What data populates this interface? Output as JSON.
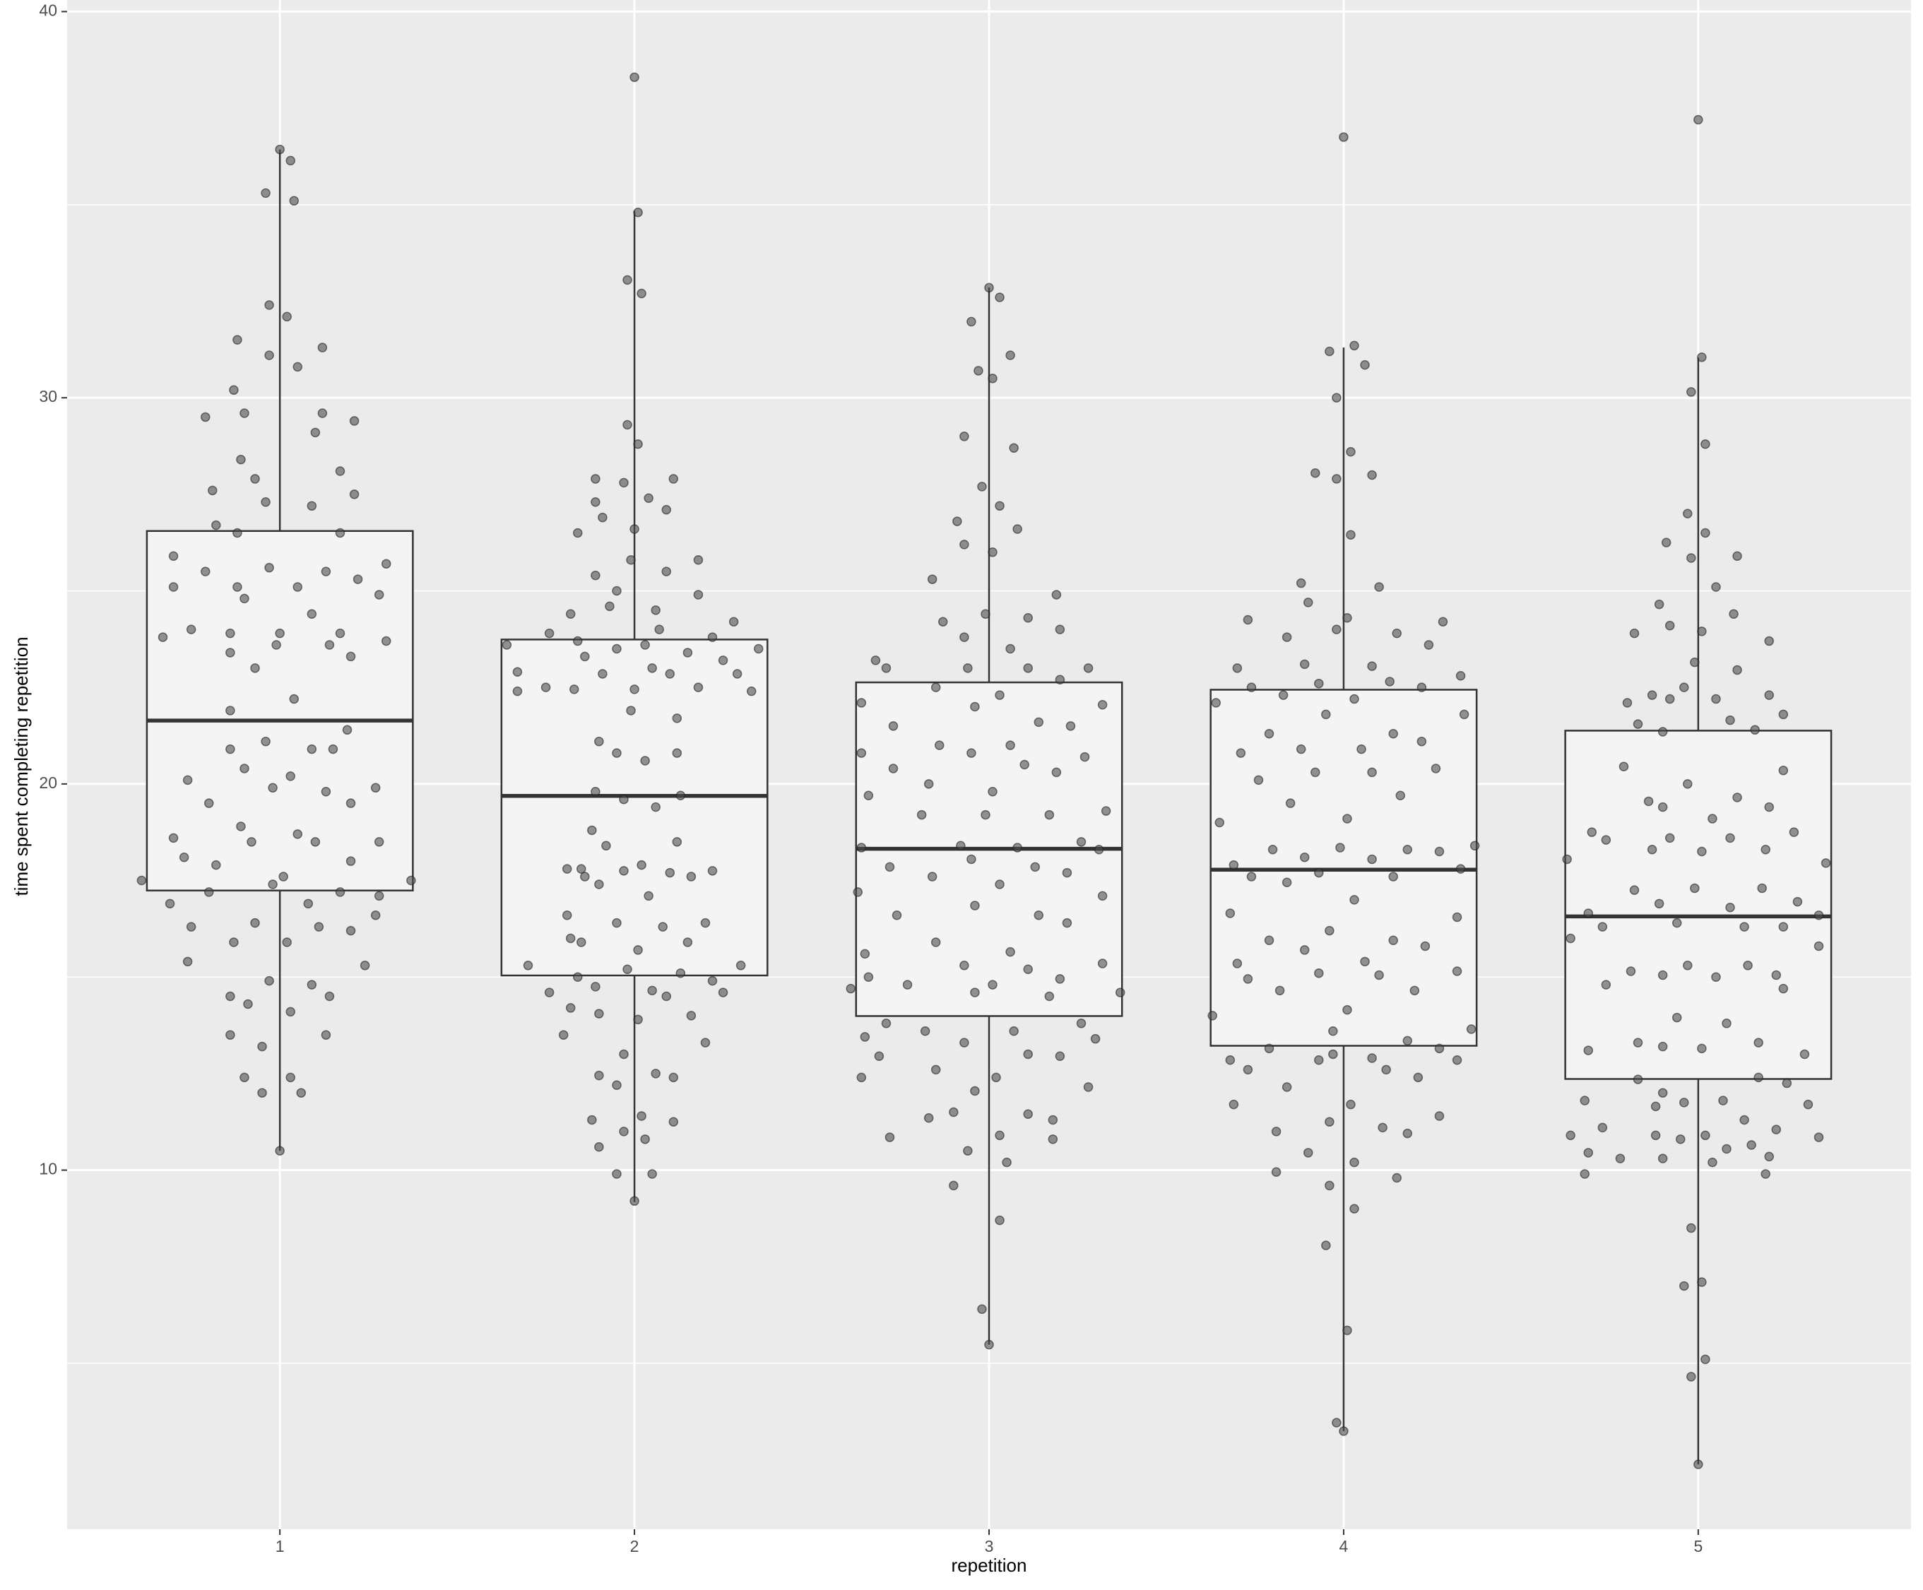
{
  "chart_data": {
    "type": "box",
    "x_label": "repetition",
    "y_label": "time spent completing repetition",
    "xlim": [
      0.4,
      5.6
    ],
    "xticks": [
      1,
      2,
      3,
      4,
      5
    ],
    "ylim": [
      0.7,
      40.3
    ],
    "yticks": [
      10,
      20,
      30,
      40
    ],
    "minor_yticks": [
      5,
      15,
      25,
      35
    ],
    "grid": true,
    "panel_color": "#ebebeb",
    "box_fill": "#f4f4f4",
    "line_color": "#333333",
    "point_color": "#4d4d4d",
    "boxes": [
      {
        "x": 1,
        "whisker_low": 10.5,
        "q1": 17.24,
        "median": 21.64,
        "q3": 26.55,
        "whisker_high": 36.43
      },
      {
        "x": 2,
        "whisker_low": 9.17,
        "q1": 15.04,
        "median": 19.69,
        "q3": 23.74,
        "whisker_high": 34.84
      },
      {
        "x": 3,
        "whisker_low": 5.48,
        "q1": 13.99,
        "median": 18.32,
        "q3": 22.63,
        "whisker_high": 32.86
      },
      {
        "x": 4,
        "whisker_low": 3.24,
        "q1": 13.22,
        "median": 17.78,
        "q3": 22.44,
        "whisker_high": 31.3
      },
      {
        "x": 5,
        "whisker_low": 2.38,
        "q1": 12.36,
        "median": 16.57,
        "q3": 21.38,
        "whisker_high": 31.04
      }
    ],
    "points": {
      "x": [
        1.0,
        1.03,
        0.96,
        1.04,
        0.97,
        1.02,
        0.88,
        1.12,
        0.97,
        1.05,
        0.87,
        0.79,
        0.9,
        1.12,
        1.21,
        1.1,
        0.89,
        1.17,
        0.93,
        0.81,
        1.21,
        0.96,
        1.09,
        0.82,
        0.88,
        1.17,
        0.7,
        0.79,
        0.97,
        1.13,
        1.3,
        1.22,
        0.7,
        0.88,
        1.05,
        0.9,
        1.28,
        1.09,
        0.75,
        0.67,
        0.86,
        1.17,
        1.0,
        0.99,
        1.14,
        1.3,
        0.86,
        1.2,
        0.93,
        1.04,
        0.86,
        1.19,
        0.96,
        0.86,
        1.09,
        1.15,
        0.9,
        1.03,
        0.74,
        0.98,
        1.13,
        1.27,
        0.8,
        1.2,
        0.7,
        0.89,
        1.05,
        0.92,
        1.1,
        1.28,
        0.73,
        0.82,
        1.2,
        0.61,
        1.01,
        0.98,
        1.37,
        0.8,
        1.17,
        1.28,
        0.69,
        1.08,
        1.27,
        0.93,
        1.11,
        0.75,
        1.2,
        0.87,
        1.02,
        0.74,
        1.24,
        0.97,
        1.09,
        0.86,
        1.14,
        0.91,
        1.03,
        0.86,
        1.13,
        0.95,
        0.9,
        1.03,
        0.95,
        1.06,
        1.0,
        2.0,
        2.01,
        1.98,
        2.02,
        1.98,
        2.01,
        1.89,
        1.97,
        2.11,
        2.04,
        1.89,
        2.09,
        1.91,
        2.0,
        1.84,
        2.18,
        1.99,
        2.09,
        1.89,
        2.18,
        1.95,
        1.93,
        2.06,
        1.82,
        2.28,
        2.07,
        1.76,
        2.22,
        1.84,
        2.03,
        1.64,
        2.35,
        1.95,
        1.86,
        2.15,
        2.25,
        1.67,
        1.91,
        2.05,
        2.1,
        2.29,
        1.67,
        1.75,
        1.83,
        2.18,
        2.33,
        2.0,
        1.99,
        2.12,
        1.9,
        1.95,
        2.12,
        2.03,
        1.89,
        1.97,
        2.06,
        2.13,
        1.88,
        1.92,
        2.12,
        1.81,
        1.85,
        1.97,
        2.02,
        2.1,
        2.22,
        2.16,
        1.86,
        1.9,
        2.04,
        1.81,
        2.08,
        1.95,
        2.2,
        1.82,
        1.85,
        2.15,
        2.01,
        1.7,
        1.98,
        2.13,
        2.3,
        1.84,
        2.22,
        1.76,
        1.89,
        2.05,
        2.09,
        2.25,
        1.82,
        1.9,
        2.01,
        2.16,
        1.8,
        2.2,
        1.97,
        1.9,
        2.06,
        2.11,
        1.95,
        1.88,
        2.02,
        2.11,
        1.97,
        2.03,
        1.9,
        1.95,
        2.05,
        2.0,
        3.0,
        3.03,
        2.95,
        3.06,
        2.97,
        3.01,
        3.07,
        2.93,
        2.98,
        3.03,
        2.91,
        3.08,
        3.01,
        2.93,
        2.84,
        3.19,
        2.99,
        3.11,
        2.87,
        3.2,
        2.93,
        3.06,
        2.68,
        3.28,
        2.71,
        2.94,
        3.11,
        2.85,
        3.2,
        3.03,
        2.64,
        2.96,
        3.32,
        3.14,
        2.73,
        3.23,
        2.86,
        3.06,
        2.64,
        2.95,
        3.1,
        3.19,
        2.73,
        3.27,
        2.83,
        3.01,
        2.66,
        3.17,
        2.99,
        2.81,
        3.33,
        3.26,
        2.92,
        3.08,
        2.64,
        3.31,
        2.95,
        2.72,
        3.13,
        3.22,
        2.84,
        3.03,
        2.63,
        3.32,
        2.96,
        2.74,
        3.14,
        3.22,
        2.85,
        2.65,
        3.06,
        2.93,
        3.11,
        3.32,
        2.66,
        3.2,
        2.77,
        3.01,
        2.61,
        2.96,
        3.37,
        3.17,
        2.71,
        2.82,
        3.26,
        3.07,
        2.65,
        2.93,
        3.3,
        2.69,
        3.11,
        3.2,
        2.85,
        3.02,
        2.64,
        3.28,
        2.96,
        2.9,
        3.11,
        2.83,
        3.18,
        3.03,
        2.72,
        3.18,
        2.94,
        3.05,
        2.9,
        3.03,
        2.98,
        3.0,
        4.0,
        4.03,
        3.96,
        4.06,
        3.98,
        4.02,
        3.92,
        3.98,
        4.08,
        4.02,
        4.1,
        3.88,
        3.9,
        3.73,
        4.01,
        4.28,
        3.84,
        4.15,
        3.98,
        4.24,
        3.7,
        4.08,
        3.89,
        4.33,
        4.13,
        3.93,
        3.74,
        4.22,
        3.83,
        4.03,
        3.64,
        3.95,
        4.34,
        3.79,
        4.14,
        4.22,
        3.88,
        3.71,
        4.05,
        4.26,
        3.92,
        4.08,
        3.76,
        4.16,
        3.85,
        4.01,
        3.65,
        4.37,
        3.8,
        3.99,
        4.18,
        4.27,
        3.89,
        4.08,
        3.69,
        3.93,
        4.14,
        4.33,
        3.74,
        3.84,
        4.03,
        3.68,
        4.32,
        3.96,
        3.79,
        4.14,
        4.23,
        3.89,
        4.06,
        3.7,
        4.32,
        3.93,
        4.1,
        3.73,
        3.82,
        4.2,
        4.01,
        3.63,
        4.36,
        3.97,
        4.18,
        3.79,
        4.27,
        3.97,
        4.08,
        3.93,
        3.68,
        4.32,
        3.73,
        4.12,
        4.21,
        3.84,
        3.69,
        4.02,
        4.27,
        3.96,
        3.81,
        4.11,
        4.18,
        3.9,
        4.03,
        3.81,
        4.15,
        3.96,
        4.03,
        3.95,
        4.01,
        3.98,
        4.0,
        5.0,
        5.01,
        4.98,
        5.02,
        4.97,
        5.02,
        5.11,
        4.98,
        4.91,
        5.05,
        4.89,
        5.1,
        4.92,
        4.82,
        5.01,
        5.2,
        4.99,
        5.11,
        4.8,
        5.05,
        4.87,
        4.92,
        5.2,
        4.96,
        5.09,
        5.24,
        4.9,
        5.16,
        4.83,
        5.24,
        4.79,
        4.97,
        5.11,
        4.86,
        5.2,
        4.9,
        5.04,
        4.63,
        4.7,
        4.74,
        4.92,
        5.09,
        4.87,
        5.01,
        5.19,
        5.27,
        5.36,
        4.82,
        4.99,
        5.18,
        4.69,
        4.89,
        5.09,
        5.34,
        5.28,
        4.64,
        4.73,
        4.94,
        5.13,
        5.24,
        5.34,
        4.81,
        4.97,
        5.14,
        4.9,
        5.05,
        5.22,
        4.74,
        5.24,
        4.94,
        5.08,
        4.83,
        4.9,
        5.01,
        5.17,
        4.69,
        5.3,
        4.83,
        5.17,
        5.25,
        4.9,
        4.68,
        4.96,
        5.07,
        5.31,
        4.88,
        4.73,
        5.13,
        5.22,
        4.64,
        4.88,
        5.02,
        4.95,
        5.34,
        5.15,
        4.69,
        4.78,
        4.9,
        5.04,
        5.2,
        5.08,
        4.68,
        5.19,
        4.98,
        4.96,
        5.01,
        5.02,
        4.98,
        5.0
      ],
      "y": [
        36.43,
        36.14,
        35.3,
        35.1,
        32.4,
        32.1,
        31.5,
        31.3,
        31.1,
        30.8,
        30.2,
        29.5,
        29.6,
        29.6,
        29.4,
        29.1,
        28.4,
        28.1,
        27.9,
        27.6,
        27.5,
        27.3,
        27.2,
        26.7,
        26.5,
        26.5,
        25.9,
        25.5,
        25.6,
        25.5,
        25.7,
        25.3,
        25.1,
        25.1,
        25.1,
        24.8,
        24.9,
        24.4,
        24.0,
        23.8,
        23.9,
        23.9,
        23.9,
        23.6,
        23.6,
        23.7,
        23.4,
        23.3,
        23.0,
        22.2,
        21.9,
        21.4,
        21.1,
        20.9,
        20.9,
        20.9,
        20.4,
        20.2,
        20.1,
        19.9,
        19.8,
        19.9,
        19.5,
        19.5,
        18.6,
        18.9,
        18.7,
        18.5,
        18.5,
        18.5,
        18.1,
        17.9,
        18.0,
        17.5,
        17.6,
        17.4,
        17.5,
        17.2,
        17.2,
        17.1,
        16.9,
        16.9,
        16.6,
        16.4,
        16.3,
        16.3,
        16.2,
        15.9,
        15.9,
        15.4,
        15.3,
        14.9,
        14.8,
        14.5,
        14.5,
        14.3,
        14.1,
        13.5,
        13.5,
        13.2,
        12.4,
        12.4,
        12.0,
        12.0,
        10.5,
        38.3,
        34.8,
        33.05,
        32.7,
        29.3,
        28.8,
        27.9,
        27.8,
        27.9,
        27.4,
        27.3,
        27.1,
        26.9,
        26.6,
        26.5,
        25.8,
        25.8,
        25.5,
        25.4,
        24.9,
        25.0,
        24.6,
        24.5,
        24.4,
        24.2,
        24.0,
        23.9,
        23.8,
        23.7,
        23.6,
        23.6,
        23.5,
        23.5,
        23.3,
        23.4,
        23.2,
        22.9,
        22.85,
        23.0,
        22.85,
        22.85,
        22.4,
        22.5,
        22.45,
        22.5,
        22.4,
        22.45,
        21.9,
        21.7,
        21.1,
        20.8,
        20.8,
        20.6,
        19.8,
        19.6,
        19.4,
        19.7,
        18.8,
        18.4,
        18.5,
        17.8,
        17.8,
        17.75,
        17.9,
        17.7,
        17.75,
        17.6,
        17.6,
        17.4,
        17.1,
        16.6,
        16.3,
        16.4,
        16.4,
        16.0,
        15.9,
        15.9,
        15.7,
        15.3,
        15.2,
        15.1,
        15.3,
        15.0,
        14.9,
        14.6,
        14.75,
        14.65,
        14.5,
        14.6,
        14.2,
        14.05,
        13.9,
        14.0,
        13.5,
        13.3,
        13.0,
        12.45,
        12.5,
        12.4,
        12.2,
        11.3,
        11.4,
        11.25,
        11.0,
        10.8,
        10.6,
        9.9,
        9.9,
        9.2,
        32.85,
        32.6,
        31.97,
        31.1,
        30.7,
        30.5,
        28.7,
        29.0,
        27.7,
        27.2,
        26.8,
        26.6,
        26.0,
        26.2,
        25.3,
        24.9,
        24.4,
        24.3,
        24.2,
        24.0,
        23.8,
        23.5,
        23.2,
        23.0,
        23.0,
        23.0,
        23.0,
        22.5,
        22.7,
        22.3,
        22.1,
        22.0,
        22.05,
        21.6,
        21.5,
        21.5,
        21.0,
        21.0,
        20.8,
        20.8,
        20.5,
        20.3,
        20.4,
        20.7,
        20.0,
        19.8,
        19.7,
        19.2,
        19.2,
        19.2,
        19.3,
        18.5,
        18.4,
        18.35,
        18.35,
        18.3,
        18.05,
        17.85,
        17.85,
        17.7,
        17.6,
        17.4,
        17.2,
        17.1,
        16.85,
        16.6,
        16.6,
        16.4,
        15.9,
        15.6,
        15.65,
        15.3,
        15.2,
        15.35,
        15.0,
        14.95,
        14.8,
        14.8,
        14.7,
        14.6,
        14.6,
        14.5,
        13.8,
        13.6,
        13.8,
        13.6,
        13.45,
        13.3,
        13.4,
        12.95,
        13.0,
        12.95,
        12.6,
        12.4,
        12.4,
        12.15,
        12.05,
        11.5,
        11.45,
        11.35,
        11.3,
        10.9,
        10.85,
        10.8,
        10.5,
        10.2,
        9.6,
        8.7,
        6.4,
        5.48,
        36.75,
        31.35,
        31.2,
        30.85,
        30.0,
        28.6,
        28.05,
        27.9,
        28.0,
        26.45,
        25.1,
        25.2,
        24.7,
        24.25,
        24.3,
        24.2,
        23.8,
        23.9,
        24.0,
        23.6,
        23.0,
        23.05,
        23.1,
        22.8,
        22.65,
        22.6,
        22.5,
        22.5,
        22.3,
        22.2,
        22.1,
        21.8,
        21.8,
        21.3,
        21.3,
        21.1,
        20.9,
        20.8,
        20.9,
        20.4,
        20.3,
        20.3,
        20.1,
        19.7,
        19.5,
        19.1,
        19.0,
        18.4,
        18.3,
        18.35,
        18.3,
        18.25,
        18.1,
        18.05,
        17.9,
        17.7,
        17.6,
        17.8,
        17.6,
        17.45,
        17.0,
        16.65,
        16.55,
        16.2,
        15.95,
        15.95,
        15.8,
        15.7,
        15.4,
        15.35,
        15.15,
        15.1,
        15.05,
        14.95,
        14.65,
        14.65,
        14.15,
        14.0,
        13.65,
        13.6,
        13.35,
        13.15,
        13.15,
        13.0,
        12.9,
        12.85,
        12.85,
        12.85,
        12.6,
        12.6,
        12.4,
        12.15,
        11.7,
        11.7,
        11.4,
        11.25,
        11.0,
        11.1,
        10.95,
        10.45,
        10.2,
        9.95,
        9.8,
        9.6,
        9.0,
        8.05,
        5.85,
        3.46,
        3.24,
        37.2,
        31.05,
        30.15,
        28.8,
        27.0,
        26.5,
        25.9,
        25.85,
        26.25,
        25.1,
        24.65,
        24.4,
        24.1,
        23.9,
        23.95,
        23.7,
        23.15,
        22.95,
        22.1,
        22.2,
        22.3,
        22.2,
        22.3,
        22.5,
        21.65,
        21.8,
        21.35,
        21.4,
        21.55,
        20.35,
        20.45,
        20.0,
        19.65,
        19.55,
        19.4,
        19.4,
        19.1,
        18.05,
        18.75,
        18.55,
        18.6,
        18.6,
        18.3,
        18.25,
        18.3,
        18.75,
        17.95,
        17.25,
        17.3,
        17.3,
        16.65,
        16.9,
        16.8,
        16.6,
        16.95,
        16.0,
        16.3,
        16.4,
        16.3,
        16.3,
        15.8,
        15.15,
        15.3,
        15.3,
        15.05,
        15.0,
        15.05,
        14.8,
        14.7,
        13.95,
        13.8,
        13.3,
        13.2,
        13.15,
        13.3,
        13.1,
        13.0,
        12.35,
        12.4,
        12.25,
        12.0,
        11.8,
        11.75,
        11.8,
        11.7,
        11.65,
        11.1,
        11.3,
        11.05,
        10.9,
        10.9,
        10.9,
        10.8,
        10.85,
        10.65,
        10.45,
        10.3,
        10.3,
        10.2,
        10.35,
        10.55,
        9.9,
        9.9,
        8.5,
        7.0,
        7.1,
        5.1,
        4.65,
        2.38
      ]
    }
  }
}
